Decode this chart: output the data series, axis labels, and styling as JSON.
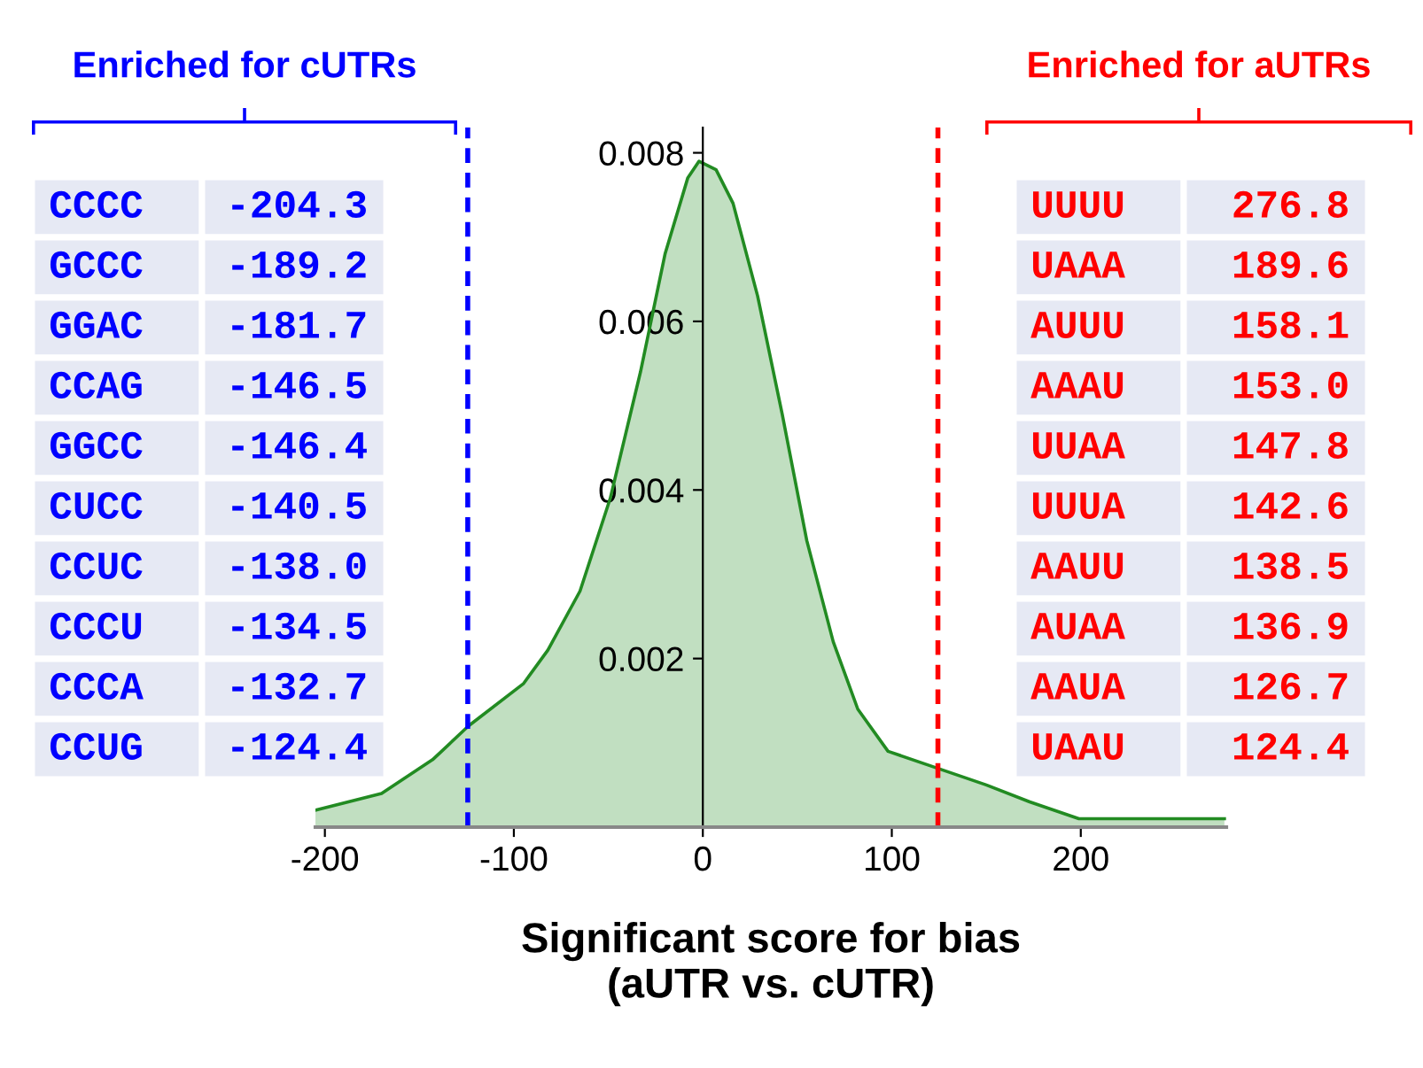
{
  "chart_data": [
    {
      "type": "area",
      "xlabel": "Significant score for bias\n(aUTR vs. cUTR)",
      "x": [
        -205,
        -170,
        -143,
        -124,
        -95,
        -82,
        -65,
        -49,
        -33,
        -20,
        -8,
        -2,
        7,
        16,
        29,
        42,
        55,
        69,
        82,
        98,
        124,
        150,
        173,
        199,
        232,
        276
      ],
      "series": [
        {
          "color": "#228b22",
          "values": [
            0.0002,
            0.0004,
            0.0008,
            0.0012,
            0.0017,
            0.0021,
            0.0028,
            0.0039,
            0.0054,
            0.0068,
            0.0077,
            0.0079,
            0.0078,
            0.0074,
            0.0063,
            0.0049,
            0.0034,
            0.0022,
            0.0014,
            0.0009,
            0.0007,
            0.0005,
            0.0003,
            0.0001,
            0.0001,
            0.0001
          ]
        }
      ],
      "xlim": [
        -205,
        277
      ],
      "ylim": [
        0,
        0.0083
      ],
      "xticks": [
        -200,
        -100,
        0,
        100,
        200
      ],
      "yticks": [
        0.002,
        0.004,
        0.006,
        0.008
      ],
      "ref_lines": [
        {
          "axis": "x",
          "value": -124.4,
          "color": "#0000ff",
          "line_style": "dashed"
        },
        {
          "axis": "x",
          "value": 124.4,
          "color": "#ff0000",
          "line_style": "dashed"
        }
      ]
    },
    {
      "type": "other",
      "title": "Enriched for cUTRs",
      "color": "#0000ff",
      "value_labels": [
        "-204.3",
        "-189.2",
        "-181.7",
        "-146.5",
        "-146.4",
        "-140.5",
        "-138.0",
        "-134.5",
        "-132.7",
        "-124.4"
      ],
      "categories": [
        "CCCC",
        "GCCC",
        "GGAC",
        "CCAG",
        "GGCC",
        "CUCC",
        "CCUC",
        "CCCU",
        "CCCA",
        "CCUG"
      ]
    },
    {
      "type": "other",
      "title": "Enriched for aUTRs",
      "color": "#ff0000",
      "value_labels": [
        "276.8",
        "189.6",
        "158.1",
        "153.0",
        "147.8",
        "142.6",
        "138.5",
        "136.9",
        "126.7",
        "124.4"
      ],
      "categories": [
        "UUUU",
        "UAAA",
        "AUUU",
        "AAAU",
        "UUAA",
        "UUUA",
        "AAUU",
        "AUAA",
        "AAUA",
        "UAAU"
      ]
    }
  ]
}
